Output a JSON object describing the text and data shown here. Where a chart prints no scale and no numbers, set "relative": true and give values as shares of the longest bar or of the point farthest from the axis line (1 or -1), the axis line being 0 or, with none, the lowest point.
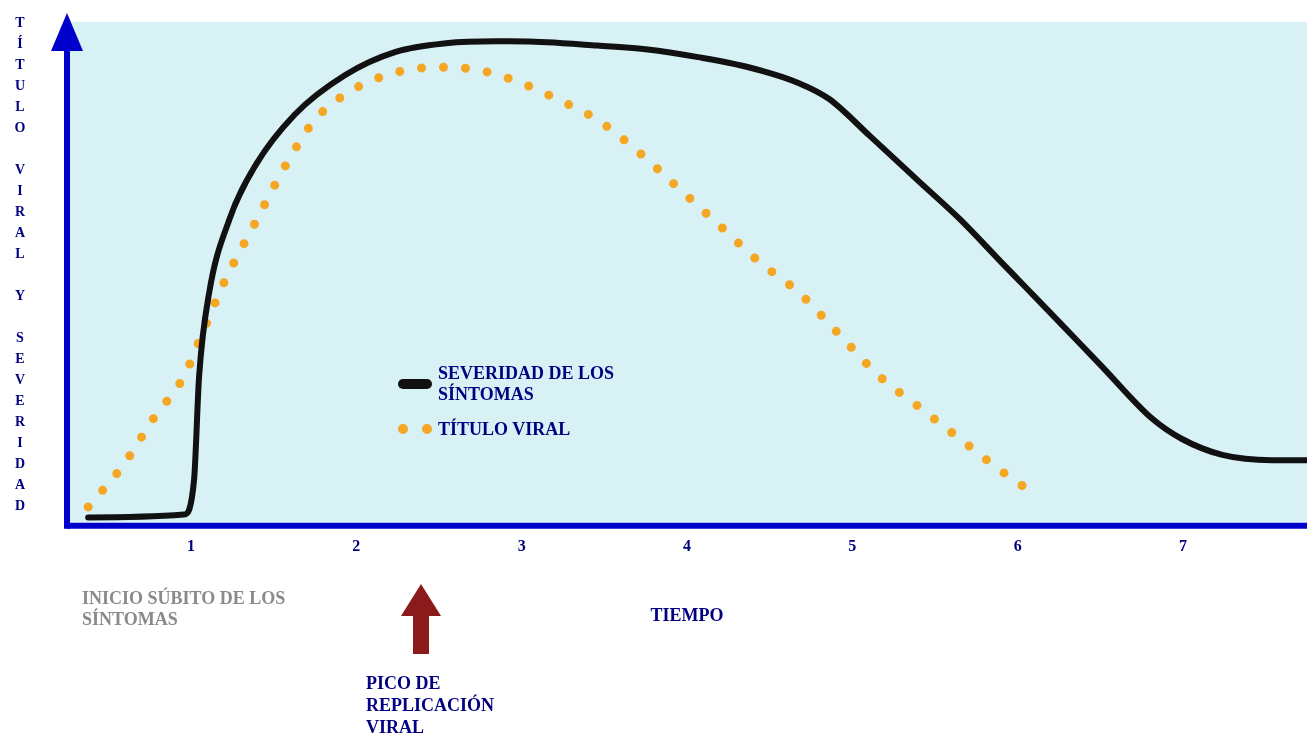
{
  "chart_data": {
    "type": "line",
    "relative": true,
    "xlabel": "TIEMPO",
    "ylabel": "TÍTULO VIRAL Y SEVERIDAD",
    "xlim": [
      0.25,
      7.75
    ],
    "xticks": [
      1,
      2,
      3,
      4,
      5,
      6,
      7
    ],
    "grid": false,
    "legend": "bottom left",
    "annotations": [
      "INICIO SÚBITO DE LOS SÍNTOMAS",
      "PICO DE REPLICACIÓN VIRAL"
    ],
    "series": [
      {
        "name": "SEVERIDAD DE LOS SÍNTOMAS",
        "color": "#111111",
        "line_style": "solid",
        "x": [
          0.378,
          0.957,
          1.018,
          1.049,
          1.11,
          1.232,
          1.384,
          1.628,
          1.933,
          2.238,
          2.543,
          2.848,
          3.152,
          3.457,
          3.762,
          4.067,
          4.372,
          4.677,
          4.86,
          5.104,
          5.409,
          5.652,
          5.896,
          6.201,
          6.506,
          6.811,
          6.994,
          7.238,
          7.543,
          7.75
        ],
        "values": [
          0.011,
          0.017,
          0.087,
          0.304,
          0.478,
          0.63,
          0.739,
          0.848,
          0.93,
          0.978,
          0.996,
          1.0,
          0.998,
          0.991,
          0.983,
          0.967,
          0.946,
          0.913,
          0.88,
          0.804,
          0.707,
          0.63,
          0.543,
          0.435,
          0.326,
          0.217,
          0.174,
          0.141,
          0.13,
          0.13
        ]
      },
      {
        "name": "TÍTULO VIRAL",
        "color": "#f5a623",
        "line_style": "dotted",
        "x": [
          0.378,
          0.591,
          0.774,
          0.957,
          1.079,
          1.201,
          1.384,
          1.567,
          1.75,
          1.994,
          2.238,
          2.482,
          2.726,
          2.97,
          3.213,
          3.457,
          3.701,
          3.945,
          4.189,
          4.433,
          4.677,
          4.921,
          5.165,
          5.409,
          5.652,
          5.896,
          6.079
        ],
        "values": [
          0.033,
          0.12,
          0.217,
          0.304,
          0.402,
          0.5,
          0.62,
          0.739,
          0.837,
          0.902,
          0.935,
          0.946,
          0.941,
          0.917,
          0.88,
          0.837,
          0.772,
          0.696,
          0.62,
          0.543,
          0.478,
          0.391,
          0.304,
          0.239,
          0.174,
          0.109,
          0.065
        ]
      }
    ]
  }
}
